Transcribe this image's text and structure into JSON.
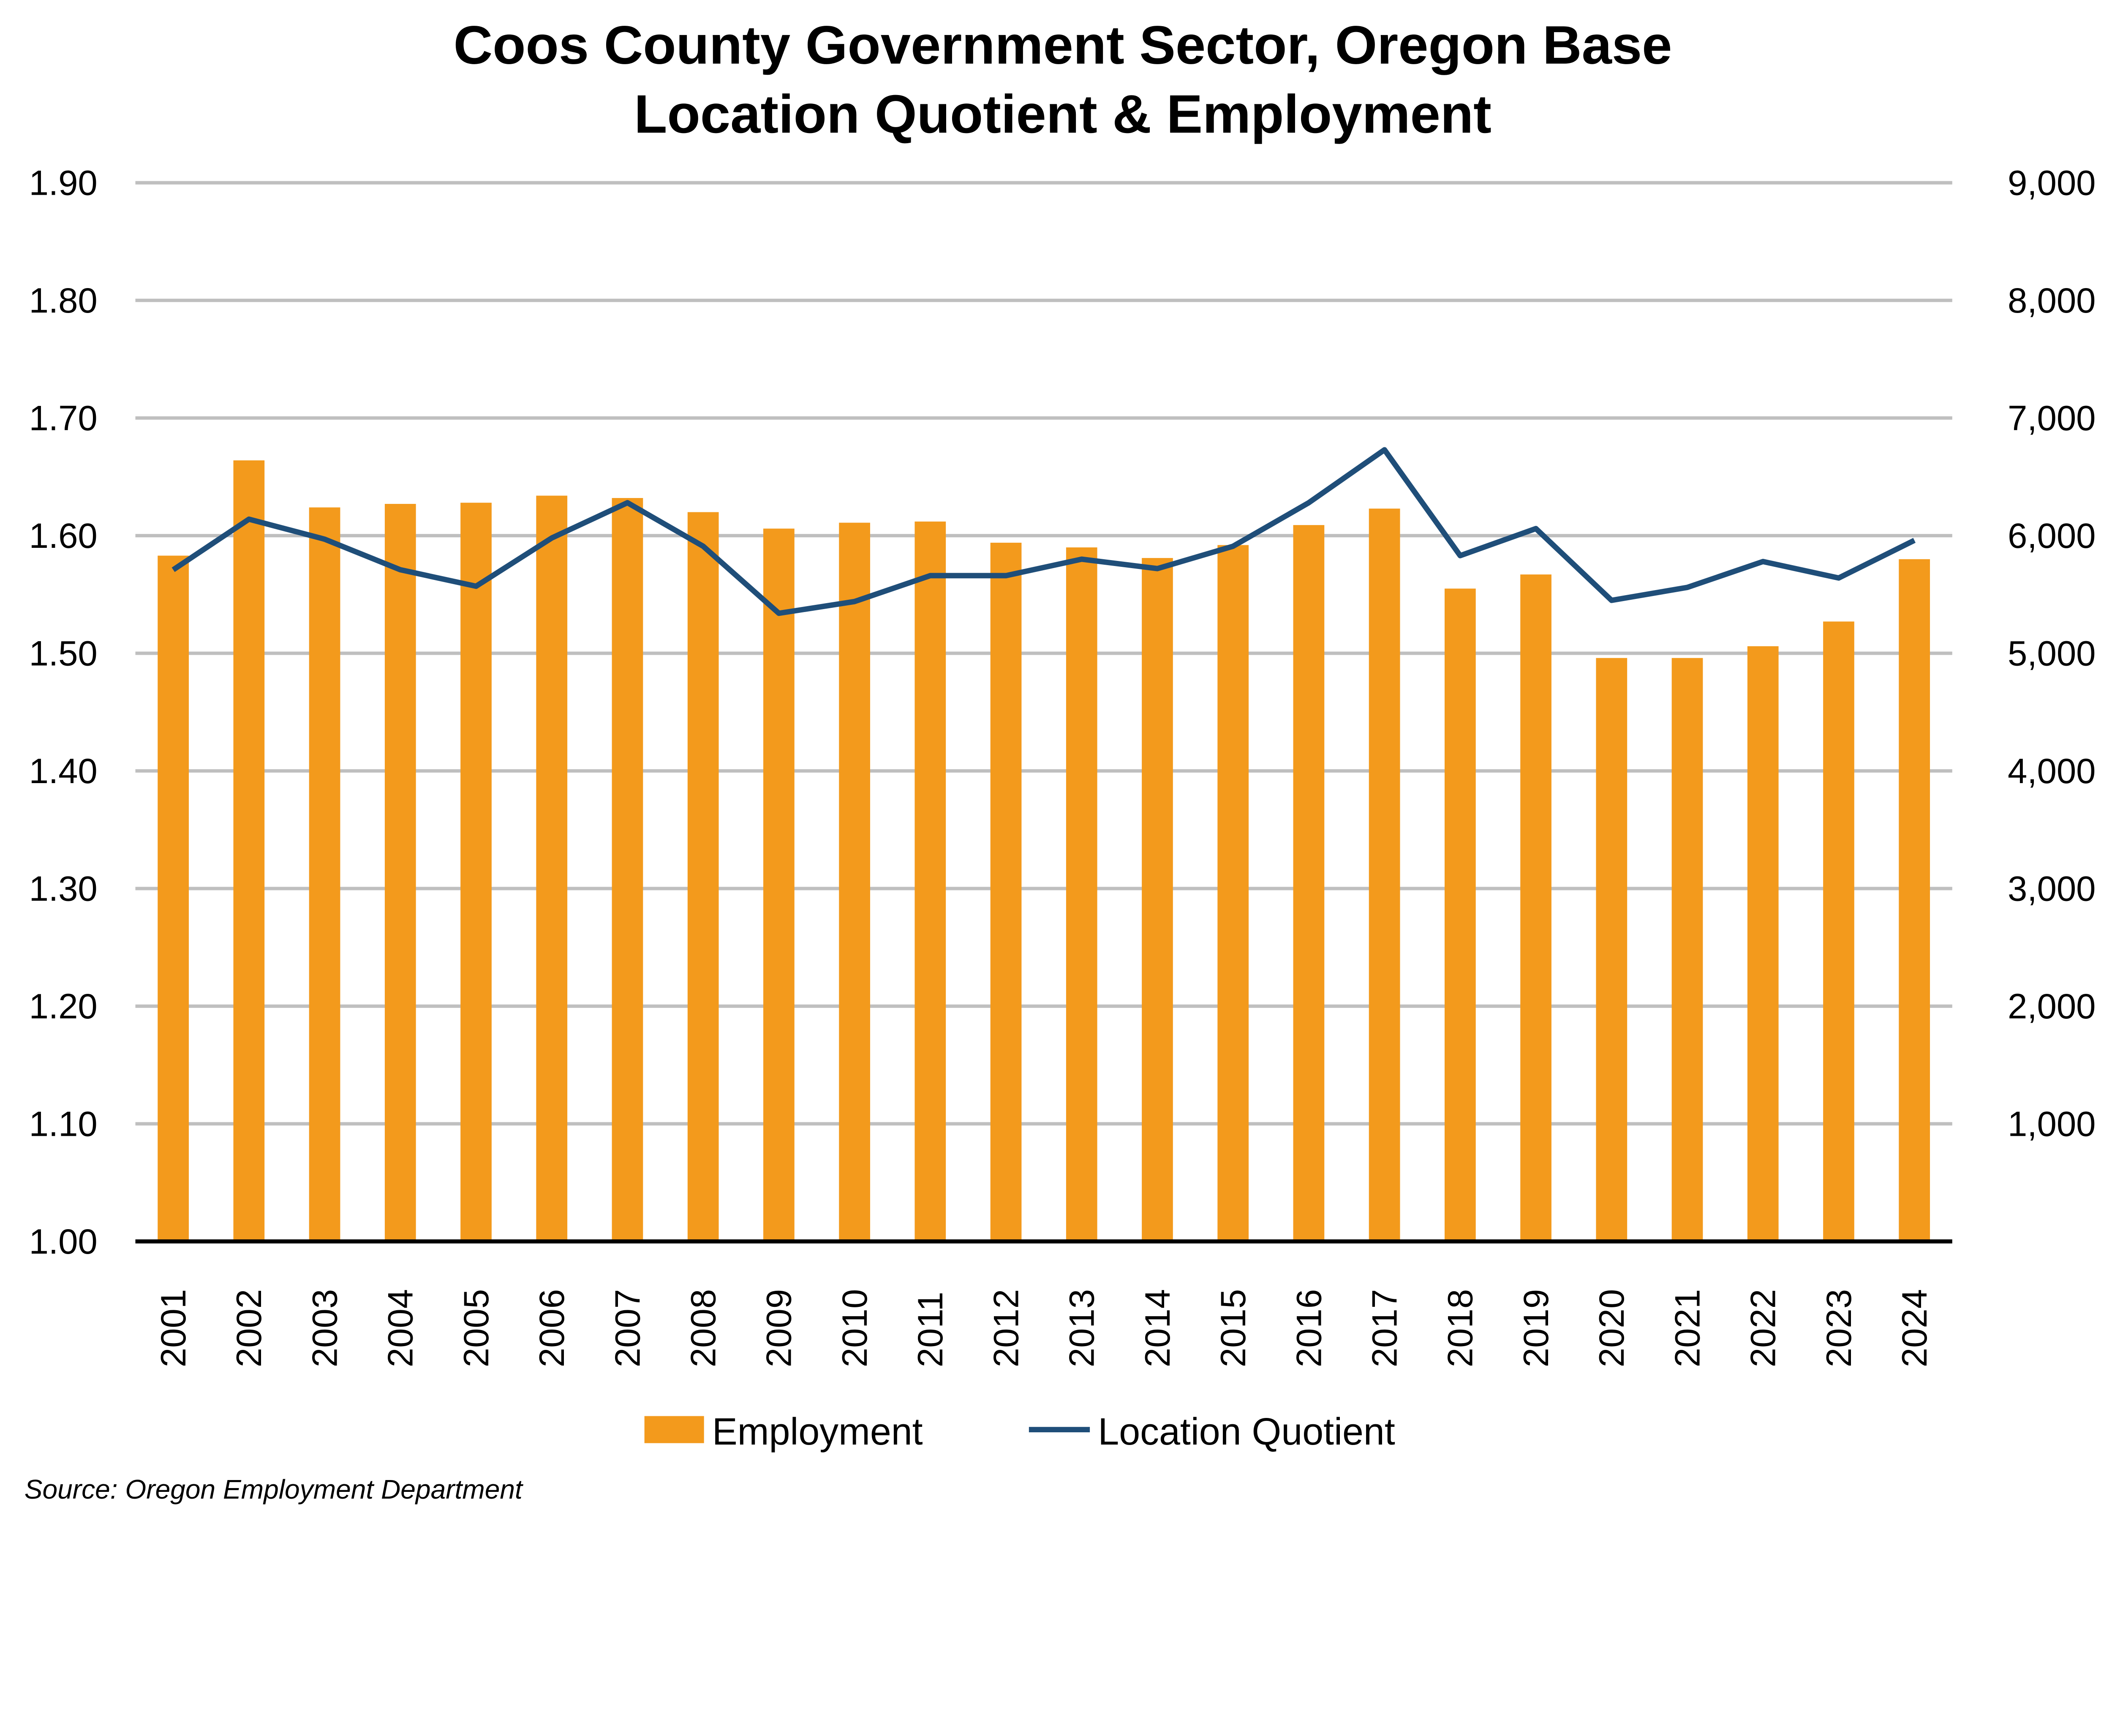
{
  "chart_data": {
    "type": "bar+line",
    "title": [
      "Coos County Government Sector, Oregon Base",
      "Location Quotient & Employment"
    ],
    "categories": [
      "2001",
      "2002",
      "2003",
      "2004",
      "2005",
      "2006",
      "2007",
      "2008",
      "2009",
      "2010",
      "2011",
      "2012",
      "2013",
      "2014",
      "2015",
      "2016",
      "2017",
      "2018",
      "2019",
      "2020",
      "2021",
      "2022",
      "2023",
      "2024"
    ],
    "series": [
      {
        "name": "Employment",
        "type": "bar",
        "axis": "right",
        "color": "#F39A1C",
        "values": [
          5830,
          6640,
          6240,
          6270,
          6280,
          6340,
          6320,
          6200,
          6060,
          6110,
          6120,
          5940,
          5900,
          5810,
          5920,
          6090,
          6230,
          5550,
          5670,
          4960,
          4960,
          5060,
          5270,
          5800
        ]
      },
      {
        "name": "Location Quotient",
        "type": "line",
        "axis": "left",
        "color": "#1F4E79",
        "values": [
          1.571,
          1.614,
          1.597,
          1.571,
          1.557,
          1.598,
          1.628,
          1.591,
          1.534,
          1.544,
          1.566,
          1.566,
          1.58,
          1.572,
          1.591,
          1.628,
          1.673,
          1.583,
          1.606,
          1.545,
          1.556,
          1.578,
          1.564,
          1.596
        ]
      }
    ],
    "left_axis": {
      "range": [
        1.0,
        1.9
      ],
      "ticks": [
        "1.00",
        "1.10",
        "1.20",
        "1.30",
        "1.40",
        "1.50",
        "1.60",
        "1.70",
        "1.80",
        "1.90"
      ]
    },
    "right_axis": {
      "range": [
        0,
        9000
      ],
      "ticks": [
        "",
        "1,000",
        "2,000",
        "3,000",
        "4,000",
        "5,000",
        "6,000",
        "7,000",
        "8,000",
        "9,000"
      ]
    },
    "grid": true,
    "legend": "bottom",
    "source": "Source: Oregon Employment Department"
  }
}
